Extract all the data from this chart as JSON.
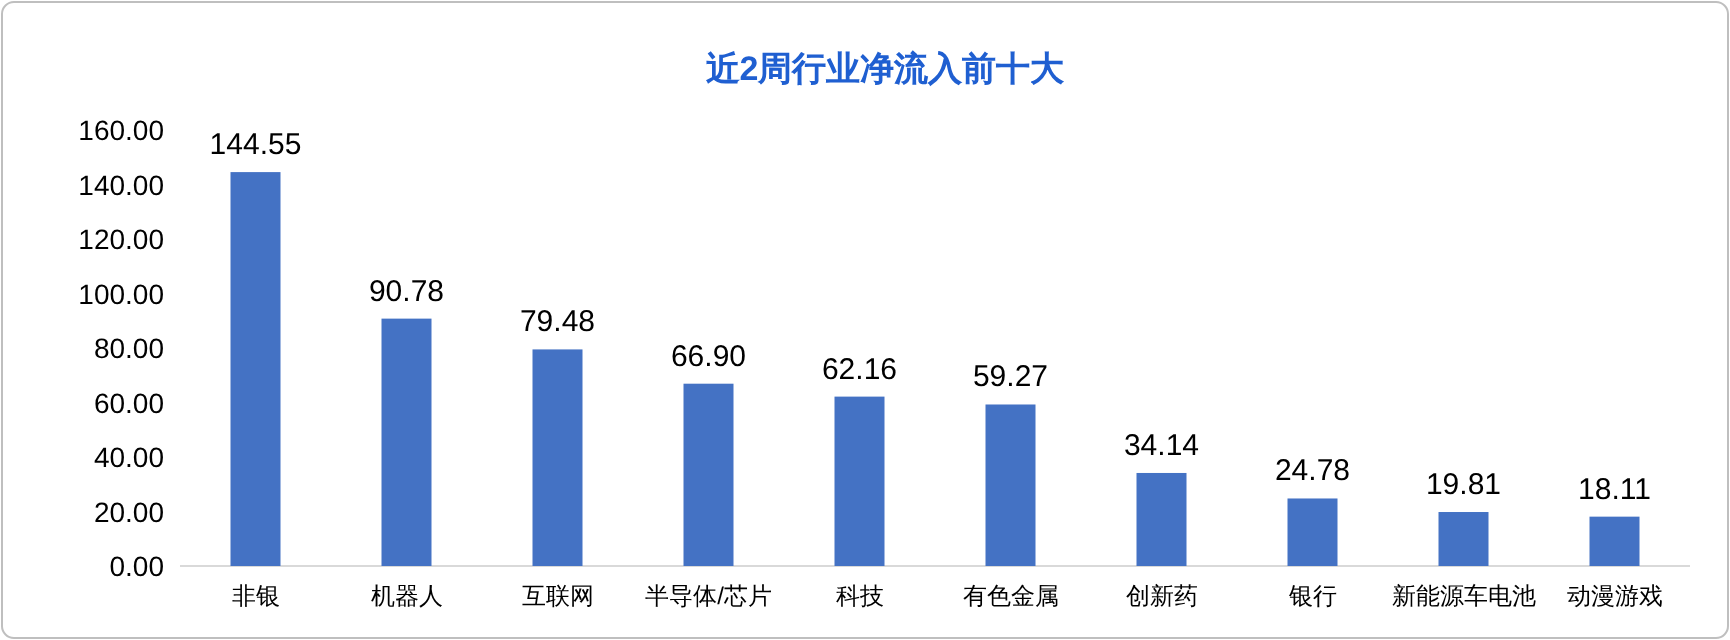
{
  "chart_data": {
    "type": "bar",
    "title": "近2周行业净流入前十大",
    "categories": [
      "非银",
      "机器人",
      "互联网",
      "半导体/芯片",
      "科技",
      "有色金属",
      "创新药",
      "银行",
      "新能源车电池",
      "动漫游戏"
    ],
    "values": [
      144.55,
      90.78,
      79.48,
      66.9,
      62.16,
      59.27,
      34.14,
      24.78,
      19.81,
      18.11
    ],
    "value_labels": [
      "144.55",
      "90.78",
      "79.48",
      "66.90",
      "62.16",
      "59.27",
      "34.14",
      "24.78",
      "19.81",
      "18.11"
    ],
    "color": "#4472c4",
    "ylim": [
      0,
      160
    ],
    "yticks": [
      {
        "value": 0,
        "label": "0.00"
      },
      {
        "value": 20,
        "label": "20.00"
      },
      {
        "value": 40,
        "label": "40.00"
      },
      {
        "value": 60,
        "label": "60.00"
      },
      {
        "value": 80,
        "label": "80.00"
      },
      {
        "value": 100,
        "label": "100.00"
      },
      {
        "value": 120,
        "label": "120.00"
      },
      {
        "value": 140,
        "label": "140.00"
      },
      {
        "value": 160,
        "label": "160.00"
      }
    ],
    "grid": false
  }
}
